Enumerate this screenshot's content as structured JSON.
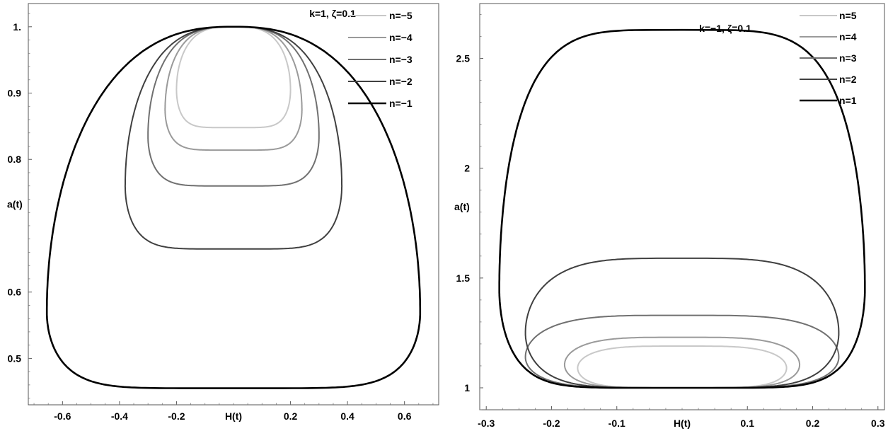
{
  "chart_data": [
    {
      "type": "line",
      "xlabel": "H(t)",
      "ylabel": "a(t)",
      "annotation": "k=1, ζ=0.1",
      "xlim": [
        -0.72,
        0.72
      ],
      "ylim": [
        0.43,
        1.035
      ],
      "xticks": [
        {
          "v": -0.6,
          "label": "-0.6"
        },
        {
          "v": -0.4,
          "label": "-0.4"
        },
        {
          "v": -0.2,
          "label": "-0.2"
        },
        {
          "v": 0.2,
          "label": "0.2"
        },
        {
          "v": 0.4,
          "label": "0.4"
        },
        {
          "v": 0.6,
          "label": "0.6"
        }
      ],
      "yticks": [
        {
          "v": 0.5,
          "label": "0.5"
        },
        {
          "v": 0.6,
          "label": "0.6"
        },
        {
          "v": 0.8,
          "label": "0.8"
        },
        {
          "v": 0.9,
          "label": "0.9"
        },
        {
          "v": 1.0,
          "label": "1."
        }
      ],
      "grid": false,
      "legend_position": "top-right",
      "series": [
        {
          "name": "n=−5",
          "color": "#c8c8c8",
          "a_top": 1.0,
          "a_bottom": 0.848,
          "a_side": 0.905,
          "h_max": 0.2,
          "top_exp": 1.6,
          "bot_exp": 3.0
        },
        {
          "name": "n=−4",
          "color": "#9a9a9a",
          "a_top": 1.0,
          "a_bottom": 0.814,
          "a_side": 0.875,
          "h_max": 0.24,
          "top_exp": 1.6,
          "bot_exp": 3.0
        },
        {
          "name": "n=−3",
          "color": "#707070",
          "a_top": 1.0,
          "a_bottom": 0.76,
          "a_side": 0.835,
          "h_max": 0.3,
          "top_exp": 1.5,
          "bot_exp": 3.0
        },
        {
          "name": "n=−2",
          "color": "#404040",
          "a_top": 1.0,
          "a_bottom": 0.665,
          "a_side": 0.76,
          "h_max": 0.38,
          "top_exp": 1.4,
          "bot_exp": 3.0
        },
        {
          "name": "n=−1",
          "color": "#000000",
          "a_top": 1.0,
          "a_bottom": 0.455,
          "a_side": 0.57,
          "h_max": 0.655,
          "top_exp": 1.25,
          "bot_exp": 3.2
        }
      ]
    },
    {
      "type": "line",
      "xlabel": "H(t)",
      "ylabel": "a(t)",
      "annotation": "k=−1, ζ=0.1",
      "xlim": [
        -0.31,
        0.31
      ],
      "ylim": [
        0.9,
        2.75
      ],
      "xticks": [
        {
          "v": -0.3,
          "label": "-0.3"
        },
        {
          "v": -0.2,
          "label": "-0.2"
        },
        {
          "v": -0.1,
          "label": "-0.1"
        },
        {
          "v": 0.1,
          "label": "0.1"
        },
        {
          "v": 0.2,
          "label": "0.2"
        },
        {
          "v": 0.3,
          "label": "0.3"
        }
      ],
      "yticks": [
        {
          "v": 1.0,
          "label": "1"
        },
        {
          "v": 1.5,
          "label": "1.5"
        },
        {
          "v": 2.0,
          "label": "2"
        },
        {
          "v": 2.5,
          "label": "2.5"
        }
      ],
      "grid": false,
      "legend_position": "top-right",
      "series": [
        {
          "name": "n=5",
          "color": "#c8c8c8",
          "a_top": 1.19,
          "a_bottom": 1.0,
          "a_side": 1.09,
          "h_max": 0.16,
          "top_exp": 2.0,
          "bot_exp": 2.6
        },
        {
          "name": "n=4",
          "color": "#9a9a9a",
          "a_top": 1.23,
          "a_bottom": 1.0,
          "a_side": 1.105,
          "h_max": 0.18,
          "top_exp": 2.0,
          "bot_exp": 2.6
        },
        {
          "name": "n=3",
          "color": "#707070",
          "a_top": 1.33,
          "a_bottom": 1.0,
          "a_side": 1.14,
          "h_max": 0.24,
          "top_exp": 2.0,
          "bot_exp": 2.6
        },
        {
          "name": "n=2",
          "color": "#404040",
          "a_top": 1.59,
          "a_bottom": 1.0,
          "a_side": 1.25,
          "h_max": 0.24,
          "top_exp": 2.0,
          "bot_exp": 2.6
        },
        {
          "name": "n=1",
          "color": "#000000",
          "a_top": 2.63,
          "a_bottom": 1.0,
          "a_side": 1.45,
          "h_max": 0.28,
          "top_exp": 2.4,
          "bot_exp": 3.4
        }
      ]
    }
  ]
}
